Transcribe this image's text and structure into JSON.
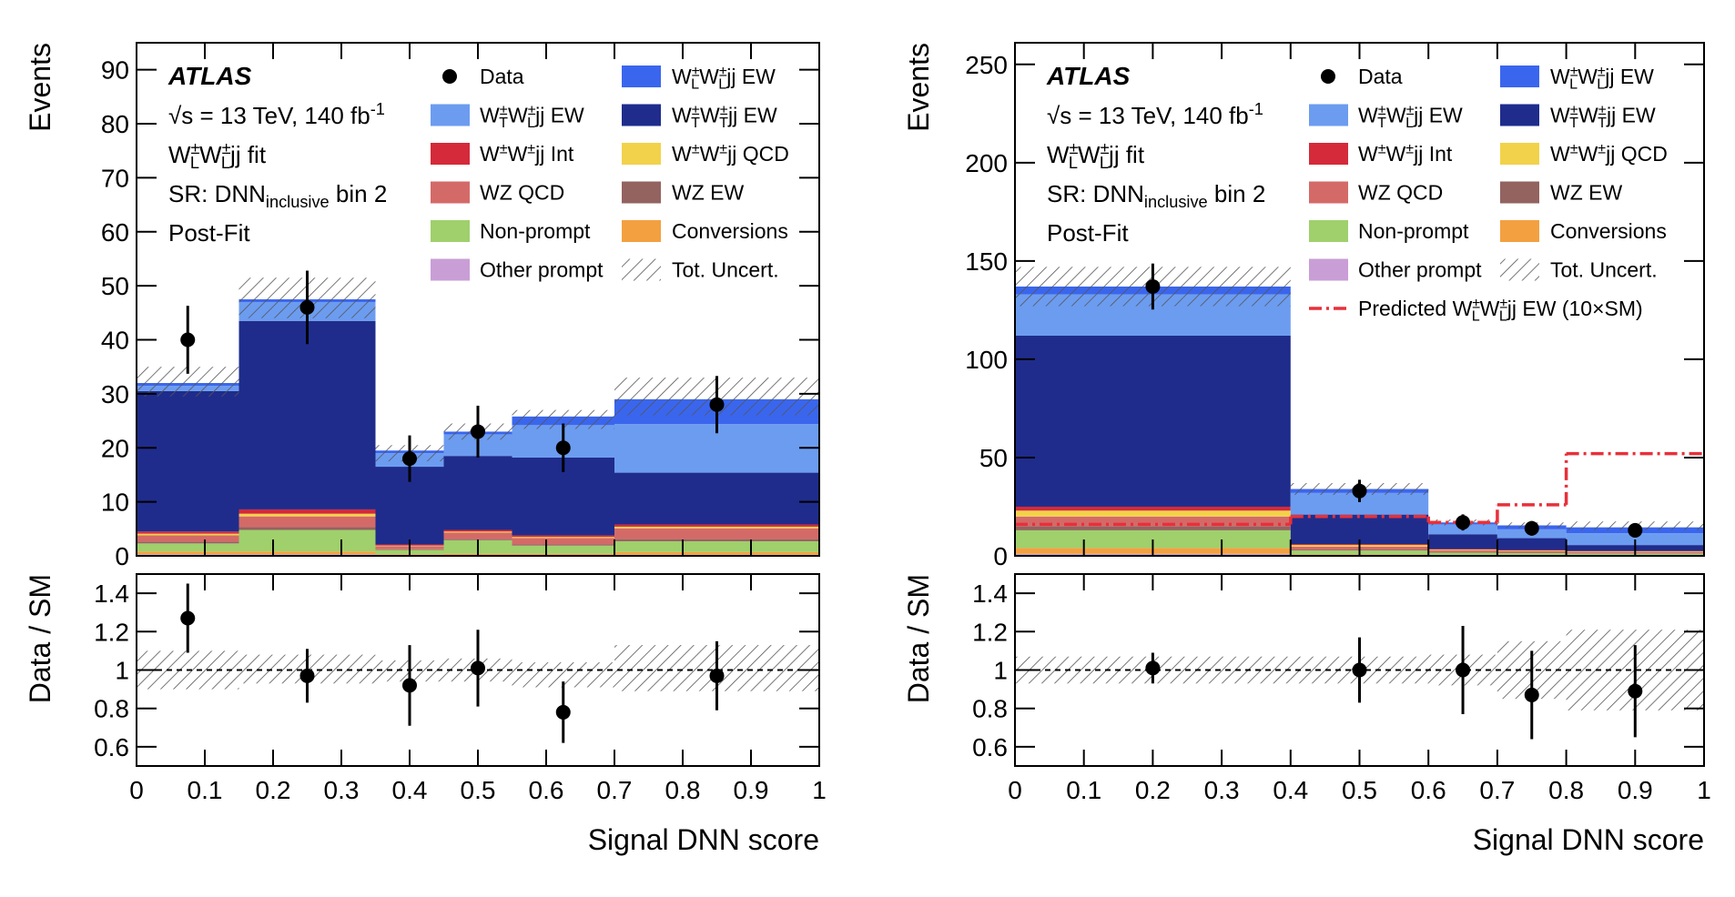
{
  "chart_data": [
    {
      "type": "histogram",
      "ylabel": "Events",
      "xlabel": "Signal DNN score",
      "annotations": [
        "ATLAS",
        "√s = 13 TeV, 140 fb-1",
        "W±LW±Ljj fit",
        "SR: DNNinclusive bin 2",
        "Post-Fit"
      ],
      "bins": [
        0,
        0.15,
        0.35,
        0.45,
        0.55,
        0.7,
        1
      ],
      "xlim": [
        0,
        1
      ],
      "xticks": [
        0,
        0.1,
        0.2,
        0.3,
        0.4,
        0.5,
        0.6,
        0.7,
        0.8,
        0.9,
        1
      ],
      "ylim": [
        0,
        95
      ],
      "yticks": [
        0,
        10,
        20,
        30,
        40,
        50,
        60,
        70,
        80,
        90
      ],
      "series": [
        {
          "name": "W±LW±Ljj EW",
          "color": "#3a66ee",
          "values": [
            0.5,
            0.5,
            0.5,
            0.5,
            1.6,
            4.6
          ]
        },
        {
          "name": "W±TW±Ljj EW",
          "color": "#6c9cf0",
          "values": [
            1,
            3.5,
            2.5,
            4,
            6,
            9
          ]
        },
        {
          "name": "W±TW±Tjj EW",
          "color": "#1f2c8c",
          "values": [
            26,
            34.9,
            14.4,
            13.7,
            14.4,
            9.6
          ]
        },
        {
          "name": "W±W±jj Int",
          "color": "#d42a3a",
          "values": [
            0.4,
            0.8,
            0.2,
            0.3,
            0.3,
            0.4
          ]
        },
        {
          "name": "W±W±jj QCD",
          "color": "#f2d24a",
          "values": [
            0.3,
            0.5,
            0.1,
            0.2,
            0.2,
            0.3
          ]
        },
        {
          "name": "WZ QCD",
          "color": "#d46a68",
          "values": [
            1.2,
            2,
            0.6,
            1.2,
            1.2,
            2
          ]
        },
        {
          "name": "WZ EW",
          "color": "#936360",
          "values": [
            0.3,
            0.5,
            0.1,
            0.2,
            0.2,
            0.4
          ]
        },
        {
          "name": "Non-prompt",
          "color": "#9fd06c",
          "values": [
            1.5,
            4,
            0.8,
            2.5,
            1.5,
            2
          ]
        },
        {
          "name": "Conversions",
          "color": "#f3a040",
          "values": [
            0.5,
            0.5,
            0.2,
            0.3,
            0.3,
            0.5
          ]
        },
        {
          "name": "Other prompt",
          "color": "#c99ed6",
          "values": [
            0.3,
            0.3,
            0.1,
            0.1,
            0.1,
            0.2
          ]
        }
      ],
      "data": {
        "name": "Data",
        "color": "#000000",
        "x": [
          0.075,
          0.25,
          0.4,
          0.5,
          0.625,
          0.85
        ],
        "values": [
          40,
          46,
          18,
          23,
          20,
          28
        ],
        "errors": [
          6.3,
          6.8,
          4.3,
          4.8,
          4.5,
          5.3
        ]
      },
      "uncertainty": {
        "name": "Tot. Uncert.",
        "low": [
          29.5,
          44,
          17.5,
          21.5,
          23.5,
          26
        ],
        "high": [
          35,
          51.5,
          20.5,
          24.5,
          27,
          33
        ]
      },
      "ratio": {
        "ylabel": "Data / SM",
        "ylim": [
          0.5,
          1.5
        ],
        "yticks": [
          0.6,
          0.8,
          1,
          1.2,
          1.4
        ],
        "reference_line": 1,
        "values": [
          1.27,
          0.97,
          0.92,
          1.01,
          0.78,
          0.97
        ],
        "errors": [
          0.18,
          0.14,
          0.21,
          0.2,
          0.16,
          0.18
        ],
        "band_low": [
          0.9,
          0.93,
          0.94,
          0.94,
          0.91,
          0.89
        ],
        "band_high": [
          1.1,
          1.08,
          1.05,
          1.06,
          1.04,
          1.13
        ]
      }
    },
    {
      "type": "histogram",
      "ylabel": "Events",
      "xlabel": "Signal DNN score",
      "annotations": [
        "ATLAS",
        "√s = 13 TeV, 140 fb-1",
        "W±LW±Ljj fit",
        "SR: DNNinclusive bin 2",
        "Post-Fit"
      ],
      "bins": [
        0,
        0.4,
        0.6,
        0.7,
        0.8,
        1
      ],
      "xlim": [
        0,
        1
      ],
      "xticks": [
        0,
        0.1,
        0.2,
        0.3,
        0.4,
        0.5,
        0.6,
        0.7,
        0.8,
        0.9,
        1
      ],
      "ylim": [
        0,
        261
      ],
      "yticks": [
        0,
        50,
        100,
        150,
        200,
        250
      ],
      "series": [
        {
          "name": "W±LW±Ljj EW",
          "color": "#3a66ee",
          "values": [
            4,
            2,
            1,
            2,
            3
          ]
        },
        {
          "name": "W±TW±Ljj EW",
          "color": "#6c9cf0",
          "values": [
            21,
            11,
            5,
            4.5,
            6
          ]
        },
        {
          "name": "W±TW±Tjj EW",
          "color": "#1f2c8c",
          "values": [
            87,
            15,
            7.5,
            6,
            3
          ]
        },
        {
          "name": "W±W±jj Int",
          "color": "#d42a3a",
          "values": [
            2,
            0.5,
            0.3,
            0.3,
            0.2
          ]
        },
        {
          "name": "W±W±jj QCD",
          "color": "#f2d24a",
          "values": [
            3,
            0.8,
            0.4,
            0.3,
            0.3
          ]
        },
        {
          "name": "WZ QCD",
          "color": "#d46a68",
          "values": [
            5,
            1.5,
            0.9,
            0.8,
            0.7
          ]
        },
        {
          "name": "WZ EW",
          "color": "#936360",
          "values": [
            2,
            0.5,
            0.3,
            0.2,
            0.2
          ]
        },
        {
          "name": "Non-prompt",
          "color": "#9fd06c",
          "values": [
            9,
            2,
            1.2,
            1,
            0.8
          ]
        },
        {
          "name": "Conversions",
          "color": "#f3a040",
          "values": [
            3,
            0.5,
            0.3,
            0.3,
            0.2
          ]
        },
        {
          "name": "Other prompt",
          "color": "#c99ed6",
          "values": [
            1,
            0.2,
            0.1,
            0.1,
            0.1
          ]
        }
      ],
      "data": {
        "name": "Data",
        "color": "#000000",
        "x": [
          0.2,
          0.5,
          0.65,
          0.75,
          0.9
        ],
        "values": [
          137,
          33,
          17,
          14,
          13
        ],
        "errors": [
          11.7,
          5.7,
          4.1,
          3.7,
          3.6
        ]
      },
      "uncertainty": {
        "name": "Tot. Uncert.",
        "low": [
          127,
          31,
          15.5,
          14,
          13
        ],
        "high": [
          147,
          37,
          18.5,
          17,
          17.5
        ]
      },
      "prediction": {
        "name": "Predicted W±LW±Ljj EW (10×SM)",
        "color": "#e8303a",
        "values": [
          16,
          20,
          17,
          26,
          52
        ]
      },
      "ratio": {
        "ylabel": "Data / SM",
        "ylim": [
          0.5,
          1.5
        ],
        "yticks": [
          0.6,
          0.8,
          1,
          1.2,
          1.4
        ],
        "reference_line": 1,
        "values": [
          1.01,
          1,
          1,
          0.87,
          0.89
        ],
        "errors": [
          0.08,
          0.17,
          0.23,
          0.23,
          0.24
        ],
        "band_low": [
          0.93,
          0.93,
          0.92,
          0.85,
          0.79
        ],
        "band_high": [
          1.07,
          1.07,
          1.08,
          1.15,
          1.21
        ]
      }
    }
  ]
}
